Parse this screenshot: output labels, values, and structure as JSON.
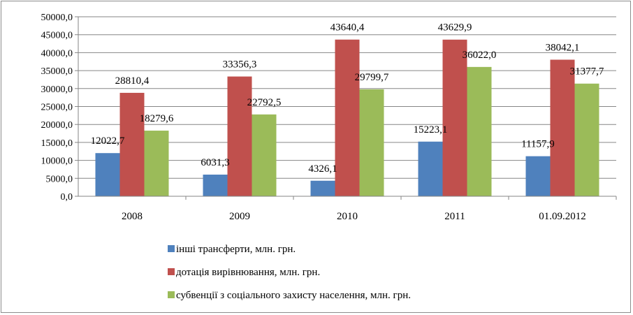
{
  "chart_data": {
    "type": "bar",
    "categories": [
      "2008",
      "2009",
      "2010",
      "2011",
      "01.09.2012"
    ],
    "series": [
      {
        "name": "інші трансферти, млн. грн.",
        "color": "#4F81BD",
        "values": [
          12022.7,
          6031.3,
          4326.1,
          15223.1,
          11157.9
        ],
        "labels": [
          "12022,7",
          "6031,3",
          "4326,1",
          "15223,1",
          "11157,9"
        ]
      },
      {
        "name": "дотація вирівнювання, млн. грн.",
        "color": "#C0504D",
        "values": [
          28810.4,
          33356.3,
          43640.4,
          43629.9,
          38042.1
        ],
        "labels": [
          "28810,4",
          "33356,3",
          "43640,4",
          "43629,9",
          "38042,1"
        ]
      },
      {
        "name": "субвенції з соціального захисту населення, млн. грн.",
        "color": "#9BBB59",
        "values": [
          18279.6,
          22792.5,
          29799.7,
          36022.0,
          31377.7
        ],
        "labels": [
          "18279,6",
          "22792,5",
          "29799,7",
          "36022,0",
          "31377,7"
        ]
      }
    ],
    "yticks": [
      "0,0",
      "5000,0",
      "10000,0",
      "15000,0",
      "20000,0",
      "25000,0",
      "30000,0",
      "35000,0",
      "40000,0",
      "45000,0",
      "50000,0"
    ],
    "ylim": [
      0,
      50000
    ],
    "grid": true,
    "legend_position": "bottom"
  }
}
